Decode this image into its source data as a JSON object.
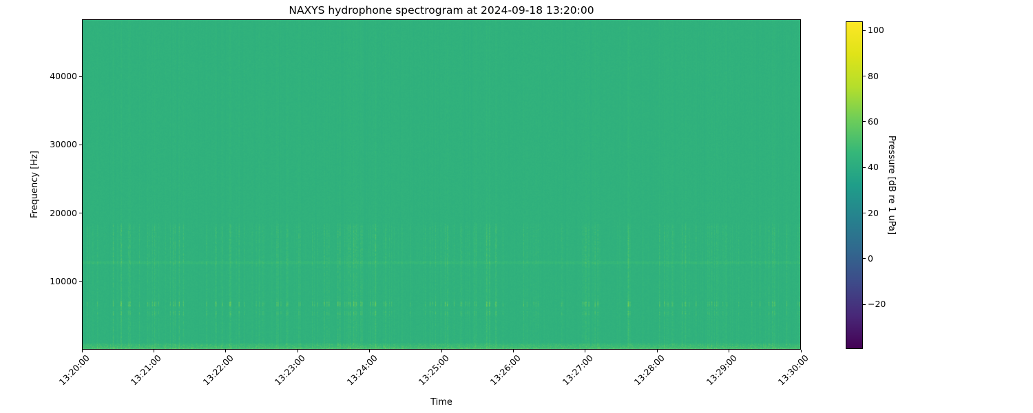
{
  "page": {
    "background": "#ffffff",
    "text_color": "#000000",
    "spine_color": "#000000"
  },
  "chart_data": {
    "type": "heatmap",
    "subtype": "spectrogram",
    "title": "NAXYS hydrophone spectrogram at 2024-09-18 13:20:00",
    "xlabel": "Time",
    "ylabel": "Frequency [Hz]",
    "x_tick_labels": [
      "13:20:00",
      "13:21:00",
      "13:22:00",
      "13:23:00",
      "13:24:00",
      "13:25:00",
      "13:26:00",
      "13:27:00",
      "13:28:00",
      "13:29:00",
      "13:30:00"
    ],
    "x_tick_rotation_deg": 45,
    "y_tick_values": [
      10000,
      20000,
      30000,
      40000
    ],
    "ylim_hz": [
      0,
      48400
    ],
    "time_span_seconds": 600,
    "grid": false,
    "colorbar": {
      "label": "Pressure [dB re 1 uPa]",
      "tick_values": [
        100,
        80,
        60,
        40,
        20,
        0,
        -20
      ],
      "vmin": -39.5,
      "vmax": 104,
      "colormap": "viridis",
      "colormap_stops": [
        {
          "t": 0.0,
          "color": "#440154"
        },
        {
          "t": 0.1,
          "color": "#482878"
        },
        {
          "t": 0.2,
          "color": "#3e4a89"
        },
        {
          "t": 0.3,
          "color": "#31688e"
        },
        {
          "t": 0.4,
          "color": "#26828e"
        },
        {
          "t": 0.5,
          "color": "#1f9e89"
        },
        {
          "t": 0.6,
          "color": "#35b779"
        },
        {
          "t": 0.7,
          "color": "#6dcd59"
        },
        {
          "t": 0.8,
          "color": "#b4de2c"
        },
        {
          "t": 0.9,
          "color": "#dfe318"
        },
        {
          "t": 1.0,
          "color": "#fde725"
        }
      ]
    },
    "field": {
      "background_db": 43.5,
      "noise_db": 1.1,
      "seed": 1337,
      "features": [
        {
          "name": "broadband-impulsive-streaks",
          "type": "streaks",
          "band_hz": [
            0,
            18500
          ],
          "boost_db": 10
        },
        {
          "name": "faint-high-frequency-striations",
          "type": "streaks",
          "band_hz": [
            18500,
            48400
          ],
          "boost_db": 3
        },
        {
          "name": "mid-band-streak-emphasis",
          "type": "boost",
          "band_hz": [
            12000,
            18200
          ],
          "boost_db": 4
        },
        {
          "name": "narrowband-tonal-line",
          "type": "line",
          "band_hz": [
            12550,
            12950
          ],
          "boost_db": 3.5
        },
        {
          "name": "click-dash-band",
          "type": "dashes",
          "band_hz": [
            6300,
            6950
          ],
          "boost_db": 14
        },
        {
          "name": "click-dash-band-secondary",
          "type": "dashes",
          "band_hz": [
            4900,
            5500
          ],
          "boost_db": 7
        },
        {
          "name": "low-frequency-bright-strip",
          "type": "strip",
          "band_hz": [
            0,
            800
          ],
          "boost_db": 9
        }
      ]
    }
  }
}
